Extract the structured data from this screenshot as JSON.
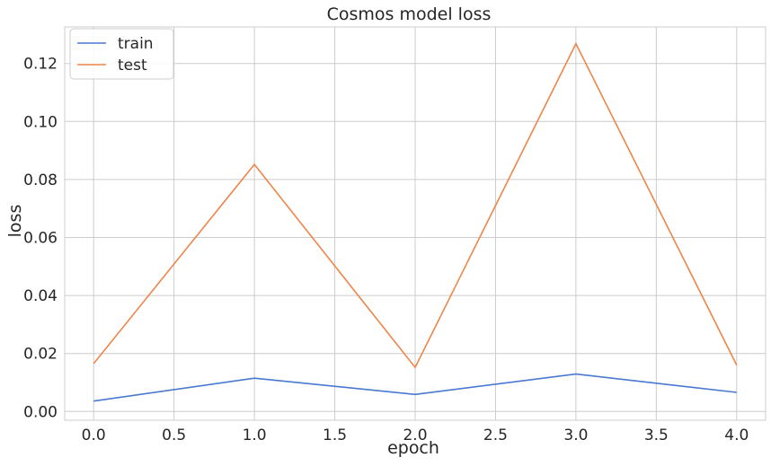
{
  "chart_data": {
    "type": "line",
    "title": "Cosmos model loss",
    "xlabel": "epoch",
    "ylabel": "loss",
    "x": [
      0,
      1,
      2,
      3,
      4
    ],
    "series": [
      {
        "name": "train",
        "color": "#4878d0",
        "values": [
          0.0036,
          0.0115,
          0.0059,
          0.0129,
          0.0066
        ]
      },
      {
        "name": "test",
        "color": "#ee854a",
        "values": [
          0.0165,
          0.0852,
          0.0152,
          0.1268,
          0.016
        ]
      }
    ],
    "xlim": [
      -0.18,
      4.18
    ],
    "ylim": [
      -0.003,
      0.1326
    ],
    "xticks": [
      0.0,
      0.5,
      1.0,
      1.5,
      2.0,
      2.5,
      3.0,
      3.5,
      4.0
    ],
    "xtick_labels": [
      "0.0",
      "0.5",
      "1.0",
      "1.5",
      "2.0",
      "2.5",
      "3.0",
      "3.5",
      "4.0"
    ],
    "yticks": [
      0.0,
      0.02,
      0.04,
      0.06,
      0.08,
      0.1,
      0.12
    ],
    "ytick_labels": [
      "0.00",
      "0.02",
      "0.04",
      "0.06",
      "0.08",
      "0.10",
      "0.12"
    ],
    "grid": true,
    "legend_position": "top-left",
    "colors": {
      "grid": "#cccccc",
      "frame": "#cccccc",
      "text": "#262626",
      "background": "#ffffff"
    }
  }
}
